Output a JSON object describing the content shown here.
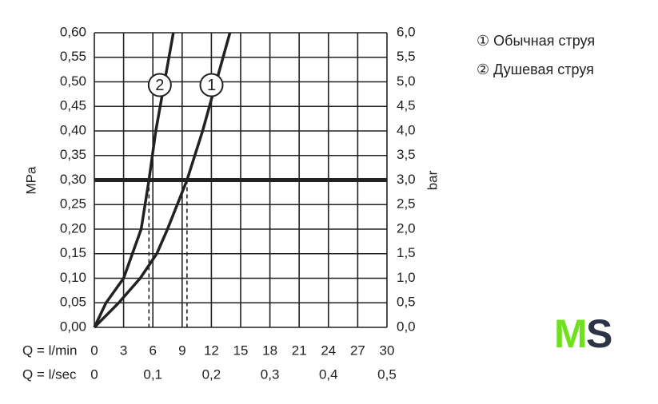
{
  "chart_data": {
    "type": "line",
    "xlabel": "Q = l/min",
    "x2label": "Q = l/sec",
    "ylabel": "MPa",
    "y2label": "bar",
    "xlim": [
      0,
      30
    ],
    "xticks": [
      0,
      3,
      6,
      9,
      12,
      15,
      18,
      21,
      24,
      27,
      30
    ],
    "x2lim": [
      0,
      0.5
    ],
    "x2ticks": [
      0,
      {
        "value": 0.1,
        "label": "0,1"
      },
      {
        "value": 0.2,
        "label": "0,2"
      },
      {
        "value": 0.3,
        "label": "0,3"
      },
      {
        "value": 0.4,
        "label": "0,4"
      },
      {
        "value": 0.5,
        "label": "0,5"
      }
    ],
    "ylim": [
      0,
      0.6
    ],
    "yticks": [
      {
        "value": 0,
        "label": "0,00"
      },
      {
        "value": 0.05,
        "label": "0,05"
      },
      {
        "value": 0.1,
        "label": "0,10"
      },
      {
        "value": 0.15,
        "label": "0,15"
      },
      {
        "value": 0.2,
        "label": "0,20"
      },
      {
        "value": 0.25,
        "label": "0,25"
      },
      {
        "value": 0.3,
        "label": "0,30"
      },
      {
        "value": 0.35,
        "label": "0,35"
      },
      {
        "value": 0.4,
        "label": "0,40"
      },
      {
        "value": 0.45,
        "label": "0,45"
      },
      {
        "value": 0.5,
        "label": "0,50"
      },
      {
        "value": 0.55,
        "label": "0,55"
      },
      {
        "value": 0.6,
        "label": "0,60"
      }
    ],
    "y2lim": [
      0,
      6
    ],
    "y2ticks": [
      {
        "value": 0,
        "label": "0,0"
      },
      {
        "value": 0.5,
        "label": "0,5"
      },
      {
        "value": 1,
        "label": "1,0"
      },
      {
        "value": 1.5,
        "label": "1,5"
      },
      {
        "value": 2,
        "label": "2,0"
      },
      {
        "value": 2.5,
        "label": "2,5"
      },
      {
        "value": 3,
        "label": "3,0"
      },
      {
        "value": 3.5,
        "label": "3,5"
      },
      {
        "value": 4,
        "label": "4,0"
      },
      {
        "value": 4.5,
        "label": "4,5"
      },
      {
        "value": 5,
        "label": "5,0"
      },
      {
        "value": 5.5,
        "label": "5,5"
      },
      {
        "value": 6,
        "label": "6,0"
      }
    ],
    "grid": true,
    "reference_line": 0.3,
    "drop_lines": [
      5.6,
      9.5
    ],
    "series": [
      {
        "name": "① Обычная струя",
        "marker": "1",
        "color": "#222222",
        "x": [
          0,
          2.5,
          4.7,
          6.4,
          7.5,
          9.5,
          11.1,
          12.5,
          13.9
        ],
        "values": [
          0,
          0.05,
          0.1,
          0.15,
          0.2,
          0.3,
          0.4,
          0.5,
          0.6
        ]
      },
      {
        "name": "② Душевая струя",
        "marker": "2",
        "color": "#222222",
        "x": [
          0,
          1.2,
          3.0,
          4.8,
          5.6,
          6.3,
          7.2,
          8.1
        ],
        "values": [
          0,
          0.05,
          0.1,
          0.2,
          0.3,
          0.4,
          0.5,
          0.6
        ]
      }
    ]
  },
  "logo": {
    "left": "M",
    "right": "S"
  }
}
